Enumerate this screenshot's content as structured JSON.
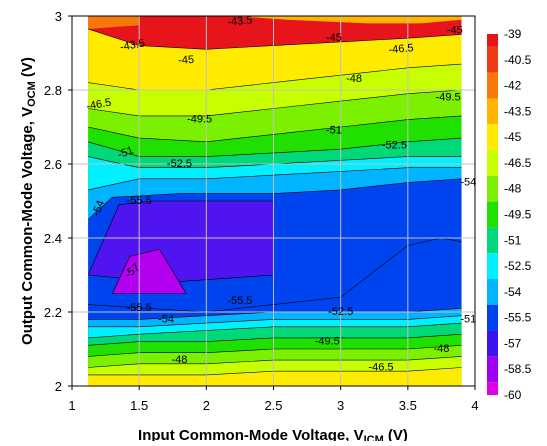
{
  "chart_data": {
    "type": "contour",
    "xlabel_main": "Input Common-Mode Voltage, V",
    "xlabel_sub": "ICM",
    "xlabel_tail": " (V)",
    "ylabel_main": "Output Common-Mode Voltage, V",
    "ylabel_sub": "OCM",
    "ylabel_tail": " (V)",
    "xlim": [
      1,
      4
    ],
    "ylim": [
      2,
      3
    ],
    "x_ticks": [
      "1",
      "1.5",
      "2",
      "2.5",
      "3",
      "3.5",
      "4"
    ],
    "y_ticks": [
      "2",
      "2.2",
      "2.4",
      "2.6",
      "2.8",
      "3"
    ],
    "grid": true,
    "legend": "right",
    "colorbar": {
      "ticks": [
        "-39",
        "-40.5",
        "-42",
        "-43.5",
        "-45",
        "-46.5",
        "-48",
        "-49.5",
        "-51",
        "-52.5",
        "-54",
        "-55.5",
        "-57",
        "-58.5",
        "-60"
      ],
      "colors": [
        "#e8141c",
        "#f03c14",
        "#f8780a",
        "#ffb400",
        "#ffeb00",
        "#c8ff00",
        "#7bf000",
        "#20e000",
        "#00d87a",
        "#00f0ff",
        "#00b4ff",
        "#0044f0",
        "#3c14f0",
        "#a000f0",
        "#e000e8"
      ]
    },
    "bands": [
      {
        "level": -42,
        "color": "#f8780a",
        "points": [
          [
            1.12,
            3
          ],
          [
            1.5,
            3
          ],
          [
            1.5,
            2.975
          ],
          [
            1.12,
            2.965
          ]
        ]
      },
      {
        "level": -43.5,
        "color": "#ffb400",
        "points": [
          [
            1.12,
            3
          ],
          [
            2.2,
            3
          ],
          [
            2.6,
            2.99
          ],
          [
            3.2,
            2.98
          ],
          [
            3.6,
            2.98
          ],
          [
            3.9,
            2.99
          ],
          [
            3.9,
            3
          ]
        ]
      },
      {
        "level": -45,
        "color": "#ffeb00",
        "points": [
          [
            1.12,
            2.965
          ],
          [
            1.5,
            2.92
          ],
          [
            2,
            2.91
          ],
          [
            2.5,
            2.92
          ],
          [
            3,
            2.93
          ],
          [
            3.5,
            2.94
          ],
          [
            3.9,
            2.95
          ]
        ]
      },
      {
        "level": -46.5,
        "color": "#c8ff00",
        "points": [
          [
            1.12,
            2.82
          ],
          [
            1.5,
            2.8
          ],
          [
            2,
            2.8
          ],
          [
            2.5,
            2.82
          ],
          [
            3,
            2.84
          ],
          [
            3.5,
            2.86
          ],
          [
            3.9,
            2.87
          ]
        ]
      },
      {
        "level": -48,
        "color": "#7bf000",
        "points": [
          [
            1.12,
            2.75
          ],
          [
            1.5,
            2.73
          ],
          [
            2,
            2.73
          ],
          [
            2.5,
            2.75
          ],
          [
            3,
            2.77
          ],
          [
            3.5,
            2.79
          ],
          [
            3.9,
            2.8
          ]
        ]
      },
      {
        "level": -49.5,
        "color": "#20e000",
        "points": [
          [
            1.12,
            2.7
          ],
          [
            1.5,
            2.67
          ],
          [
            2,
            2.66
          ],
          [
            2.5,
            2.68
          ],
          [
            3,
            2.7
          ],
          [
            3.5,
            2.72
          ],
          [
            3.9,
            2.73
          ]
        ]
      },
      {
        "level": -51,
        "color": "#00d87a",
        "points": [
          [
            1.12,
            2.66
          ],
          [
            1.5,
            2.62
          ],
          [
            2,
            2.62
          ],
          [
            2.5,
            2.63
          ],
          [
            3,
            2.64
          ],
          [
            3.5,
            2.66
          ],
          [
            3.9,
            2.67
          ]
        ]
      },
      {
        "level": -52.5,
        "color": "#00f0ff",
        "points": [
          [
            1.12,
            2.62
          ],
          [
            1.5,
            2.59
          ],
          [
            2,
            2.59
          ],
          [
            2.5,
            2.6
          ],
          [
            3,
            2.61
          ],
          [
            3.5,
            2.62
          ],
          [
            3.9,
            2.62
          ]
        ]
      },
      {
        "level": -54,
        "color": "#00b4ff",
        "points": [
          [
            1.12,
            2.53
          ],
          [
            1.5,
            2.56
          ],
          [
            2,
            2.56
          ],
          [
            2.5,
            2.57
          ],
          [
            3,
            2.58
          ],
          [
            3.5,
            2.59
          ],
          [
            3.9,
            2.59
          ]
        ]
      },
      {
        "level": -55.5,
        "color": "#0044f0",
        "points": [
          [
            1.12,
            2.45
          ],
          [
            1.3,
            2.51
          ],
          [
            1.8,
            2.52
          ],
          [
            2.5,
            2.52
          ],
          [
            3,
            2.53
          ],
          [
            3.5,
            2.55
          ],
          [
            3.9,
            2.56
          ]
        ]
      },
      {
        "level": -57,
        "color": "#5014f0",
        "points": [
          [
            1.12,
            2.3
          ],
          [
            1.35,
            2.49
          ],
          [
            1.6,
            2.5
          ],
          [
            2.5,
            2.5
          ],
          [
            2.5,
            2.3
          ],
          [
            1.7,
            2.28
          ]
        ]
      },
      {
        "level": -58.5,
        "color": "#b400f0",
        "points": [
          [
            1.3,
            2.25
          ],
          [
            1.43,
            2.35
          ],
          [
            1.65,
            2.37
          ],
          [
            1.85,
            2.25
          ]
        ]
      }
    ],
    "lower_bands": [
      {
        "level": -54,
        "color": "#0044f0",
        "points": [
          [
            1.12,
            2.22
          ],
          [
            2,
            2.2
          ],
          [
            2.5,
            2.22
          ],
          [
            3,
            2.24
          ],
          [
            3.5,
            2.38
          ],
          [
            3.75,
            2.4
          ],
          [
            3.9,
            2.39
          ]
        ]
      },
      {
        "level": -52.5,
        "color": "#00b4ff",
        "points": [
          [
            1.12,
            2.18
          ],
          [
            1.5,
            2.18
          ],
          [
            2,
            2.19
          ],
          [
            2.5,
            2.2
          ],
          [
            3,
            2.2
          ],
          [
            3.5,
            2.2
          ],
          [
            3.9,
            2.21
          ]
        ]
      },
      {
        "level": -51,
        "color": "#00f0ff",
        "points": [
          [
            1.12,
            2.16
          ],
          [
            1.5,
            2.16
          ],
          [
            2,
            2.17
          ],
          [
            2.5,
            2.18
          ],
          [
            3,
            2.18
          ],
          [
            3.5,
            2.18
          ],
          [
            3.9,
            2.19
          ]
        ]
      },
      {
        "level": -49.5,
        "color": "#00d87a",
        "points": [
          [
            1.12,
            2.13
          ],
          [
            1.5,
            2.14
          ],
          [
            2,
            2.15
          ],
          [
            2.5,
            2.16
          ],
          [
            3,
            2.16
          ],
          [
            3.5,
            2.16
          ],
          [
            3.9,
            2.17
          ]
        ]
      },
      {
        "level": -48,
        "color": "#20e000",
        "points": [
          [
            1.12,
            2.11
          ],
          [
            1.5,
            2.12
          ],
          [
            2,
            2.12
          ],
          [
            2.5,
            2.13
          ],
          [
            3,
            2.13
          ],
          [
            3.5,
            2.13
          ],
          [
            3.9,
            2.14
          ]
        ]
      },
      {
        "level": -46.5,
        "color": "#7bf000",
        "points": [
          [
            1.12,
            2.08
          ],
          [
            1.5,
            2.09
          ],
          [
            2,
            2.09
          ],
          [
            2.5,
            2.1
          ],
          [
            3,
            2.1
          ],
          [
            3.5,
            2.1
          ],
          [
            3.9,
            2.11
          ]
        ]
      },
      {
        "level": -45,
        "color": "#c8ff00",
        "points": [
          [
            1.12,
            2.05
          ],
          [
            1.5,
            2.06
          ],
          [
            2,
            2.06
          ],
          [
            2.5,
            2.07
          ],
          [
            3,
            2.07
          ],
          [
            3.5,
            2.07
          ],
          [
            3.9,
            2.08
          ]
        ]
      },
      {
        "level": -43.5,
        "color": "#ffeb00",
        "points": [
          [
            1.12,
            2.03
          ],
          [
            1.5,
            2.03
          ],
          [
            2,
            2.03
          ],
          [
            2.5,
            2.04
          ],
          [
            3,
            2.04
          ],
          [
            3.5,
            2.04
          ],
          [
            3.9,
            2.05
          ]
        ]
      }
    ],
    "annotations": [
      {
        "text": "-43.5",
        "x": 1.45,
        "y": 2.92,
        "rot": -10
      },
      {
        "text": "-43.5",
        "x": 2.25,
        "y": 2.985,
        "rot": -5
      },
      {
        "text": "-45",
        "x": 1.85,
        "y": 2.88,
        "rot": -3
      },
      {
        "text": "-45",
        "x": 2.95,
        "y": 2.94,
        "rot": 0
      },
      {
        "text": "-45",
        "x": 3.85,
        "y": 2.96,
        "rot": 0
      },
      {
        "text": "-46.5",
        "x": 3.45,
        "y": 2.91,
        "rot": -5
      },
      {
        "text": "-46.5",
        "x": 1.2,
        "y": 2.76,
        "rot": -10
      },
      {
        "text": "-48",
        "x": 3.1,
        "y": 2.83,
        "rot": 0
      },
      {
        "text": "-49.5",
        "x": 3.8,
        "y": 2.78,
        "rot": 0
      },
      {
        "text": "-49.5",
        "x": 1.95,
        "y": 2.72,
        "rot": 0
      },
      {
        "text": "-51",
        "x": 1.4,
        "y": 2.63,
        "rot": -20
      },
      {
        "text": "-51",
        "x": 2.95,
        "y": 2.69,
        "rot": 0
      },
      {
        "text": "-52.5",
        "x": 1.8,
        "y": 2.6,
        "rot": 0
      },
      {
        "text": "-52.5",
        "x": 3.4,
        "y": 2.65,
        "rot": 0
      },
      {
        "text": "-54",
        "x": 3.95,
        "y": 2.55,
        "rot": 0
      },
      {
        "text": "-54",
        "x": 1.2,
        "y": 2.48,
        "rot": -70
      },
      {
        "text": "-55.5",
        "x": 1.5,
        "y": 2.5,
        "rot": 0
      },
      {
        "text": "-57",
        "x": 1.45,
        "y": 2.31,
        "rot": -40
      },
      {
        "text": "-55.5",
        "x": 1.5,
        "y": 2.21,
        "rot": 0
      },
      {
        "text": "-54",
        "x": 1.7,
        "y": 2.18,
        "rot": 0
      },
      {
        "text": "-55.5",
        "x": 2.25,
        "y": 2.23,
        "rot": 0
      },
      {
        "text": "-52.5",
        "x": 3.0,
        "y": 2.2,
        "rot": 0
      },
      {
        "text": "-51",
        "x": 3.95,
        "y": 2.18,
        "rot": 0
      },
      {
        "text": "-49.5",
        "x": 2.9,
        "y": 2.12,
        "rot": 0
      },
      {
        "text": "-48",
        "x": 1.8,
        "y": 2.07,
        "rot": 0
      },
      {
        "text": "-48",
        "x": 3.75,
        "y": 2.1,
        "rot": 0
      },
      {
        "text": "-46.5",
        "x": 3.3,
        "y": 2.05,
        "rot": 0
      }
    ]
  }
}
